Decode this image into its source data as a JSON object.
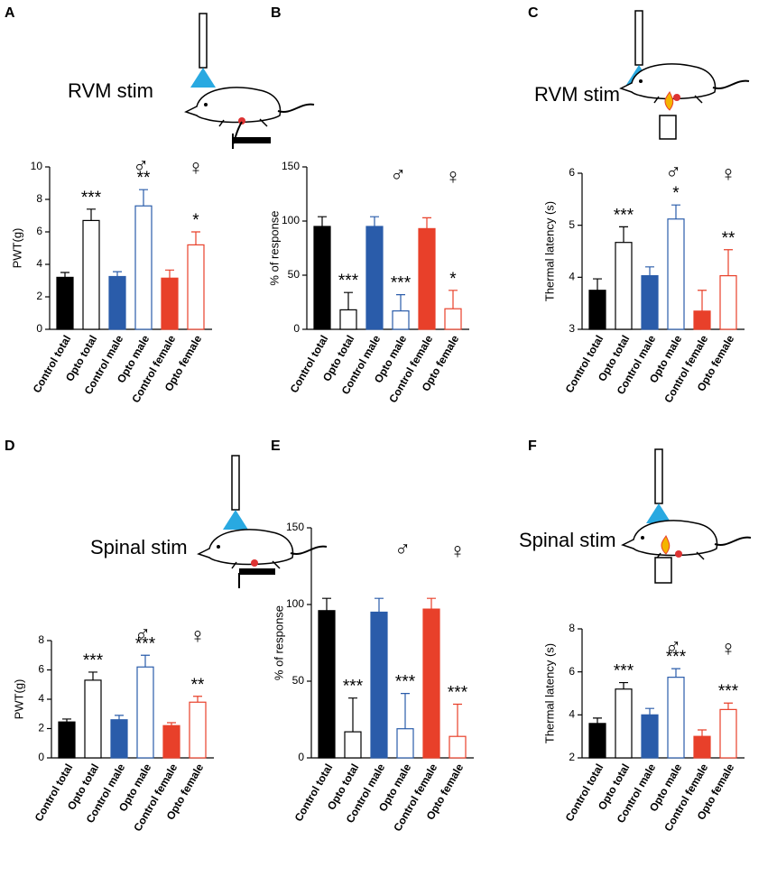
{
  "chart_data": [
    {
      "type": "bar",
      "panel": "A",
      "illustration_label": "RVM stim",
      "ylabel": "PWT(g)",
      "male_symbol": "♂",
      "female_symbol": "♀",
      "categories": [
        "Control total",
        "Opto total",
        "Control male",
        "Opto male",
        "Control female",
        "Opto female"
      ],
      "values": [
        3.2,
        6.7,
        3.25,
        7.6,
        3.15,
        5.2
      ],
      "errors": [
        0.3,
        0.7,
        0.3,
        1.0,
        0.5,
        0.8
      ],
      "annotations": [
        null,
        "***",
        null,
        "**",
        null,
        "*"
      ],
      "colors": [
        "#000000",
        "#000000",
        "#2a5caa",
        "#2a5caa",
        "#e8402a",
        "#e8402a"
      ],
      "filled": [
        true,
        false,
        true,
        false,
        true,
        false
      ],
      "ylim": [
        0,
        10
      ],
      "yticks": [
        0,
        2,
        4,
        6,
        8,
        10
      ]
    },
    {
      "type": "bar",
      "panel": "B",
      "ylabel": "% of response",
      "male_symbol": "♂",
      "female_symbol": "♀",
      "categories": [
        "Control total",
        "Opto total",
        "Control male",
        "Opto male",
        "Control female",
        "Opto female"
      ],
      "values": [
        95,
        18,
        95,
        17,
        93,
        19
      ],
      "errors": [
        9,
        16,
        9,
        15,
        10,
        17
      ],
      "annotations": [
        null,
        "***",
        null,
        "***",
        null,
        "*"
      ],
      "colors": [
        "#000000",
        "#000000",
        "#2a5caa",
        "#2a5caa",
        "#e8402a",
        "#e8402a"
      ],
      "filled": [
        true,
        false,
        true,
        false,
        true,
        false
      ],
      "ylim": [
        0,
        150
      ],
      "yticks": [
        0,
        50,
        100,
        150
      ]
    },
    {
      "type": "bar",
      "panel": "C",
      "illustration_label": "RVM stim",
      "ylabel": "Thermal latency (s)",
      "male_symbol": "♂",
      "female_symbol": "♀",
      "categories": [
        "Control total",
        "Opto total",
        "Control male",
        "Opto male",
        "Control female",
        "Opto female"
      ],
      "values": [
        3.75,
        4.67,
        4.03,
        5.12,
        3.35,
        4.03
      ],
      "errors": [
        0.22,
        0.3,
        0.17,
        0.27,
        0.4,
        0.5
      ],
      "annotations": [
        null,
        "***",
        null,
        "*",
        null,
        "**"
      ],
      "colors": [
        "#000000",
        "#000000",
        "#2a5caa",
        "#2a5caa",
        "#e8402a",
        "#e8402a"
      ],
      "filled": [
        true,
        false,
        true,
        false,
        true,
        false
      ],
      "ylim": [
        3,
        6
      ],
      "yticks": [
        3,
        4,
        5,
        6
      ]
    },
    {
      "type": "bar",
      "panel": "D",
      "illustration_label": "Spinal stim",
      "ylabel": "PWT(g)",
      "male_symbol": "♂",
      "female_symbol": "♀",
      "categories": [
        "Control total",
        "Opto total",
        "Control male",
        "Opto male",
        "Control female",
        "Opto female"
      ],
      "values": [
        2.45,
        5.3,
        2.6,
        6.2,
        2.2,
        3.8
      ],
      "errors": [
        0.2,
        0.55,
        0.3,
        0.8,
        0.2,
        0.4
      ],
      "annotations": [
        null,
        "***",
        null,
        "***",
        null,
        "**"
      ],
      "colors": [
        "#000000",
        "#000000",
        "#2a5caa",
        "#2a5caa",
        "#e8402a",
        "#e8402a"
      ],
      "filled": [
        true,
        false,
        true,
        false,
        true,
        false
      ],
      "ylim": [
        0,
        8
      ],
      "yticks": [
        0,
        2,
        4,
        6,
        8
      ]
    },
    {
      "type": "bar",
      "panel": "E",
      "ylabel": "% of response",
      "male_symbol": "♂",
      "female_symbol": "♀",
      "categories": [
        "Control total",
        "Opto total",
        "Control male",
        "Opto male",
        "Control female",
        "Opto female"
      ],
      "values": [
        96,
        17,
        95,
        19,
        97,
        14
      ],
      "errors": [
        8,
        22,
        9,
        23,
        7,
        21
      ],
      "annotations": [
        null,
        "***",
        null,
        "***",
        null,
        "***"
      ],
      "colors": [
        "#000000",
        "#000000",
        "#2a5caa",
        "#2a5caa",
        "#e8402a",
        "#e8402a"
      ],
      "filled": [
        true,
        false,
        true,
        false,
        true,
        false
      ],
      "ylim": [
        0,
        150
      ],
      "yticks": [
        0,
        50,
        100,
        150
      ]
    },
    {
      "type": "bar",
      "panel": "F",
      "illustration_label": "Spinal stim",
      "ylabel": "Thermal latency (s)",
      "male_symbol": "♂",
      "female_symbol": "♀",
      "categories": [
        "Control total",
        "Opto total",
        "Control male",
        "Opto male",
        "Control female",
        "Opto female"
      ],
      "values": [
        3.6,
        5.2,
        4.0,
        5.75,
        3.0,
        4.25
      ],
      "errors": [
        0.25,
        0.3,
        0.3,
        0.4,
        0.3,
        0.3
      ],
      "annotations": [
        null,
        "***",
        null,
        "***",
        null,
        "***"
      ],
      "colors": [
        "#000000",
        "#000000",
        "#2a5caa",
        "#2a5caa",
        "#e8402a",
        "#e8402a"
      ],
      "filled": [
        true,
        false,
        true,
        false,
        true,
        false
      ],
      "ylim": [
        2,
        8
      ],
      "yticks": [
        2,
        4,
        6,
        8
      ]
    }
  ]
}
